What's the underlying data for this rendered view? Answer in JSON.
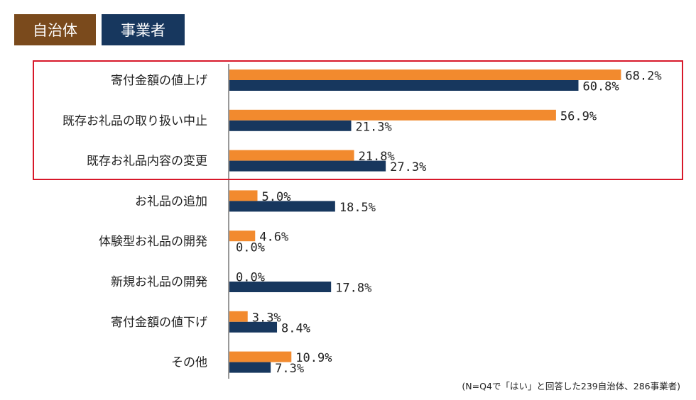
{
  "legend": {
    "municipality": {
      "label": "自治体",
      "color": "#7A4A1C"
    },
    "business": {
      "label": "事業者",
      "color": "#17375E"
    }
  },
  "highlight_color": "#D7182A",
  "note": "(N=Q4で「はい」と回答した239自治体、286事業者)",
  "chart_data": {
    "type": "bar",
    "orientation": "horizontal",
    "categories": [
      "寄付金額の値上げ",
      "既存お礼品の取り扱い中止",
      "既存お礼品内容の変更",
      "お礼品の追加",
      "体験型お礼品の開発",
      "新規お礼品の開発",
      "寄付金額の値下げ",
      "その他"
    ],
    "series": [
      {
        "name": "自治体",
        "color": "#F28A2E",
        "values": [
          68.2,
          56.9,
          21.8,
          5.0,
          4.6,
          0.0,
          3.3,
          10.9
        ],
        "labels": [
          "68.2%",
          "56.9%",
          "21.8%",
          "5.0%",
          "4.6%",
          "0.0%",
          "3.3%",
          "10.9%"
        ]
      },
      {
        "name": "事業者",
        "color": "#17375E",
        "values": [
          60.8,
          21.3,
          27.3,
          18.5,
          0.0,
          17.8,
          8.4,
          7.3
        ],
        "labels": [
          "60.8%",
          "21.3%",
          "27.3%",
          "18.5%",
          "0.0%",
          "17.8%",
          "8.4%",
          "7.3%"
        ]
      }
    ],
    "highlighted_categories": [
      0,
      1,
      2
    ]
  }
}
